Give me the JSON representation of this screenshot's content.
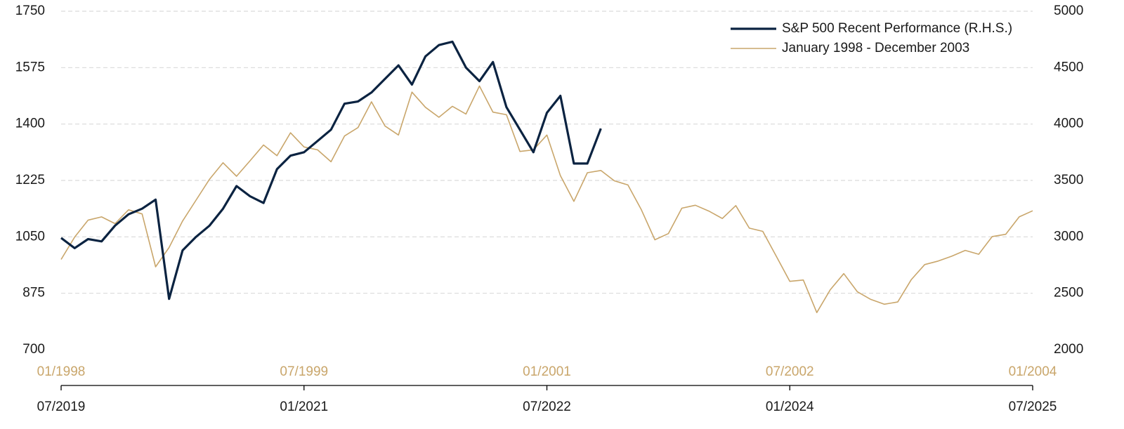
{
  "chart_data": {
    "type": "line",
    "xlim": [
      "2019-07",
      "2025-07"
    ],
    "xticks": [
      {
        "value": "2019-07",
        "label": "07/2019"
      },
      {
        "value": "2021-01",
        "label": "01/2021"
      },
      {
        "value": "2022-07",
        "label": "07/2022"
      },
      {
        "value": "2024-01",
        "label": "01/2024"
      },
      {
        "value": "2025-07",
        "label": "07/2025"
      }
    ],
    "x2lim": [
      "1998-01",
      "2004-01"
    ],
    "x2ticks": [
      {
        "value": "1998-01",
        "label": "01/1998"
      },
      {
        "value": "1999-07",
        "label": "07/1999"
      },
      {
        "value": "2001-01",
        "label": "01/2001"
      },
      {
        "value": "2002-07",
        "label": "07/2002"
      },
      {
        "value": "2004-01",
        "label": "01/2004"
      }
    ],
    "ylim": [
      700,
      1750
    ],
    "yticks": [
      700,
      875,
      1050,
      1225,
      1400,
      1575,
      1750
    ],
    "y2lim": [
      2000,
      5000
    ],
    "y2ticks": [
      2000,
      2500,
      3000,
      3500,
      4000,
      4500,
      5000
    ],
    "grid": true,
    "legend": "upper right",
    "series": [
      {
        "name": "S&P 500 Recent Performance (R.H.S.)",
        "color": "#0b2341",
        "axis": "y2",
        "xaxis": "x",
        "x": [
          "2019-07",
          "2019-08",
          "2019-09",
          "2019-10",
          "2019-11",
          "2019-12",
          "2020-01",
          "2020-02",
          "2020-03",
          "2020-04",
          "2020-05",
          "2020-06",
          "2020-07",
          "2020-08",
          "2020-09",
          "2020-10",
          "2020-11",
          "2020-12",
          "2021-01",
          "2021-02",
          "2021-03",
          "2021-04",
          "2021-05",
          "2021-06",
          "2021-07",
          "2021-08",
          "2021-09",
          "2021-10",
          "2021-11",
          "2021-12",
          "2022-01",
          "2022-02",
          "2022-03",
          "2022-04",
          "2022-05",
          "2022-06",
          "2022-07",
          "2022-08",
          "2022-09",
          "2022-10",
          "2022-11"
        ],
        "values": [
          2990,
          2900,
          2980,
          2960,
          3100,
          3200,
          3250,
          3330,
          2450,
          2880,
          3000,
          3100,
          3250,
          3450,
          3360,
          3300,
          3600,
          3720,
          3750,
          3850,
          3950,
          4180,
          4200,
          4280,
          4400,
          4520,
          4350,
          4600,
          4700,
          4730,
          4500,
          4380,
          4550,
          4150,
          3950,
          3750,
          4100,
          4250,
          3650,
          3650,
          3960
        ]
      },
      {
        "name": "January 1998 - December 2003",
        "color": "#c9a66b",
        "axis": "y",
        "xaxis": "x2",
        "x": [
          "1998-01",
          "1998-02",
          "1998-03",
          "1998-04",
          "1998-05",
          "1998-06",
          "1998-07",
          "1998-08",
          "1998-09",
          "1998-10",
          "1998-11",
          "1998-12",
          "1999-01",
          "1999-02",
          "1999-03",
          "1999-04",
          "1999-05",
          "1999-06",
          "1999-07",
          "1999-08",
          "1999-09",
          "1999-10",
          "1999-11",
          "1999-12",
          "2000-01",
          "2000-02",
          "2000-03",
          "2000-04",
          "2000-05",
          "2000-06",
          "2000-07",
          "2000-08",
          "2000-09",
          "2000-10",
          "2000-11",
          "2000-12",
          "2001-01",
          "2001-02",
          "2001-03",
          "2001-04",
          "2001-05",
          "2001-06",
          "2001-07",
          "2001-08",
          "2001-09",
          "2001-10",
          "2001-11",
          "2001-12",
          "2002-01",
          "2002-02",
          "2002-03",
          "2002-04",
          "2002-05",
          "2002-06",
          "2002-07",
          "2002-08",
          "2002-09",
          "2002-10",
          "2002-11",
          "2002-12",
          "2003-01",
          "2003-02",
          "2003-03",
          "2003-04",
          "2003-05",
          "2003-06",
          "2003-07",
          "2003-08",
          "2003-09",
          "2003-10",
          "2003-11",
          "2003-12",
          "2004-01"
        ],
        "values": [
          980,
          1049,
          1102,
          1112,
          1091,
          1134,
          1121,
          957,
          1017,
          1099,
          1164,
          1229,
          1280,
          1238,
          1286,
          1335,
          1302,
          1373,
          1329,
          1320,
          1283,
          1363,
          1389,
          1469,
          1394,
          1366,
          1499,
          1452,
          1421,
          1455,
          1431,
          1518,
          1437,
          1429,
          1315,
          1320,
          1366,
          1240,
          1160,
          1249,
          1256,
          1224,
          1211,
          1134,
          1041,
          1060,
          1139,
          1148,
          1130,
          1107,
          1147,
          1077,
          1067,
          990,
          912,
          916,
          815,
          886,
          936,
          880,
          856,
          841,
          848,
          917,
          964,
          975,
          990,
          1008,
          996,
          1051,
          1058,
          1112,
          1131
        ]
      }
    ]
  }
}
